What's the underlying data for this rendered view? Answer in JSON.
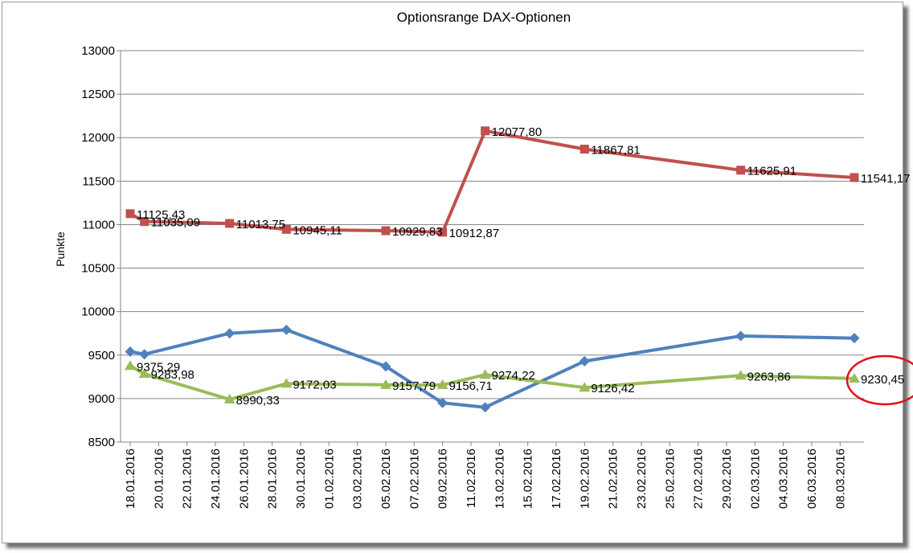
{
  "chart_data": {
    "type": "line",
    "title": "Optionsrange DAX-Optionen",
    "xlabel": "",
    "ylabel": "Punkte",
    "ylim": [
      8500,
      13000
    ],
    "ytick_step": 500,
    "yticks": [
      "8500",
      "9000",
      "9500",
      "10000",
      "10500",
      "11000",
      "11500",
      "12000",
      "12500",
      "13000"
    ],
    "grid": "horizontal",
    "legend": "none",
    "x_start": "2016-01-18",
    "x_end": "2016-03-09",
    "x_tick_labels": [
      "18.01.2016",
      "20.01.2016",
      "22.01.2016",
      "24.01.2016",
      "26.01.2016",
      "28.01.2016",
      "30.01.2016",
      "01.02.2016",
      "03.02.2016",
      "05.02.2016",
      "07.02.2016",
      "09.02.2016",
      "11.02.2016",
      "13.02.2016",
      "15.02.2016",
      "17.02.2016",
      "19.02.2016",
      "21.02.2016",
      "23.02.2016",
      "25.02.2016",
      "27.02.2016",
      "29.02.2016",
      "02.03.2016",
      "04.03.2016",
      "06.03.2016",
      "08.03.2016"
    ],
    "series": [
      {
        "color": "#c0504d",
        "marker": "square",
        "x": [
          "2016-01-18",
          "2016-01-19",
          "2016-01-25",
          "2016-01-29",
          "2016-02-05",
          "2016-02-09",
          "2016-02-12",
          "2016-02-19",
          "2016-03-01",
          "2016-03-09"
        ],
        "values": [
          11125.43,
          11035.09,
          11013.75,
          10945.11,
          10929.83,
          10912.87,
          12077.8,
          11867.81,
          11625.91,
          11541.17
        ],
        "labels": [
          "11125,43",
          "11035,09",
          "11013,75",
          "10945,11",
          "10929,83",
          "10912,87",
          "12077,80",
          "11867,81",
          "11625,91",
          "11541,17"
        ]
      },
      {
        "color": "#4f81bd",
        "marker": "diamond",
        "x": [
          "2016-01-18",
          "2016-01-19",
          "2016-01-25",
          "2016-01-29",
          "2016-02-05",
          "2016-02-09",
          "2016-02-12",
          "2016-02-19",
          "2016-03-01",
          "2016-03-09"
        ],
        "values": [
          9540,
          9510,
          9750,
          9790,
          9370,
          8950,
          8900,
          9430,
          9720,
          9695
        ],
        "labels": []
      },
      {
        "color": "#9bbb59",
        "marker": "triangle",
        "x": [
          "2016-01-18",
          "2016-01-19",
          "2016-01-25",
          "2016-01-29",
          "2016-02-05",
          "2016-02-09",
          "2016-02-12",
          "2016-02-19",
          "2016-03-01",
          "2016-03-09"
        ],
        "values": [
          9375.29,
          9283.98,
          8990.33,
          9172.03,
          9157.79,
          9156.71,
          9274.22,
          9126.42,
          9263.86,
          9230.45
        ],
        "labels": [
          "9375,29",
          "9283,98",
          "8990,33",
          "9172,03",
          "9157,79",
          "9156,71",
          "9274,22",
          "9126,42",
          "9263,86",
          "9230,45"
        ]
      }
    ],
    "annotation": {
      "type": "ellipse",
      "color": "#e0101a",
      "target": "9230,45"
    }
  }
}
